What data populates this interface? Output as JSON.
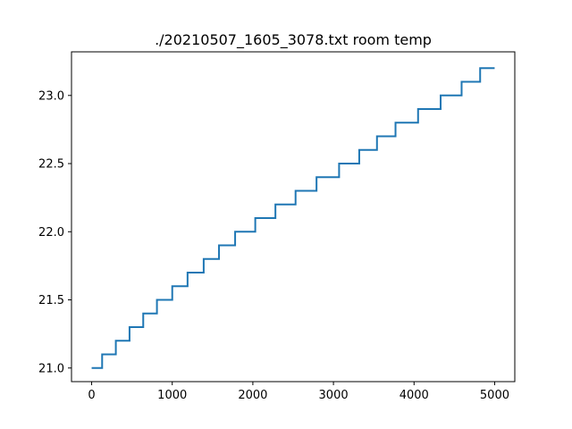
{
  "chart_data": {
    "type": "line",
    "title": "./20210507_1605_3078.txt room temp",
    "xlabel": "",
    "ylabel": "",
    "xlim": [
      -250,
      5250
    ],
    "ylim": [
      20.9,
      23.32
    ],
    "xticks": [
      0,
      1000,
      2000,
      3000,
      4000,
      5000
    ],
    "xtick_labels": [
      "0",
      "1000",
      "2000",
      "3000",
      "4000",
      "5000"
    ],
    "yticks": [
      21.0,
      21.5,
      22.0,
      22.5,
      23.0
    ],
    "ytick_labels": [
      "21.0",
      "21.5",
      "22.0",
      "22.5",
      "23.0"
    ],
    "grid": false,
    "legend": "none",
    "series": [
      {
        "color": "#1f77b4",
        "step": "post",
        "x": [
          0,
          130,
          300,
          470,
          640,
          810,
          1000,
          1190,
          1390,
          1580,
          1780,
          2030,
          2280,
          2530,
          2790,
          3070,
          3320,
          3540,
          3770,
          4050,
          4330,
          4590,
          4820,
          5000
        ],
        "y": [
          21.0,
          21.1,
          21.2,
          21.3,
          21.4,
          21.5,
          21.6,
          21.7,
          21.8,
          21.9,
          22.0,
          22.1,
          22.2,
          22.3,
          22.4,
          22.5,
          22.6,
          22.7,
          22.8,
          22.9,
          23.0,
          23.1,
          23.2,
          23.2
        ]
      }
    ]
  }
}
